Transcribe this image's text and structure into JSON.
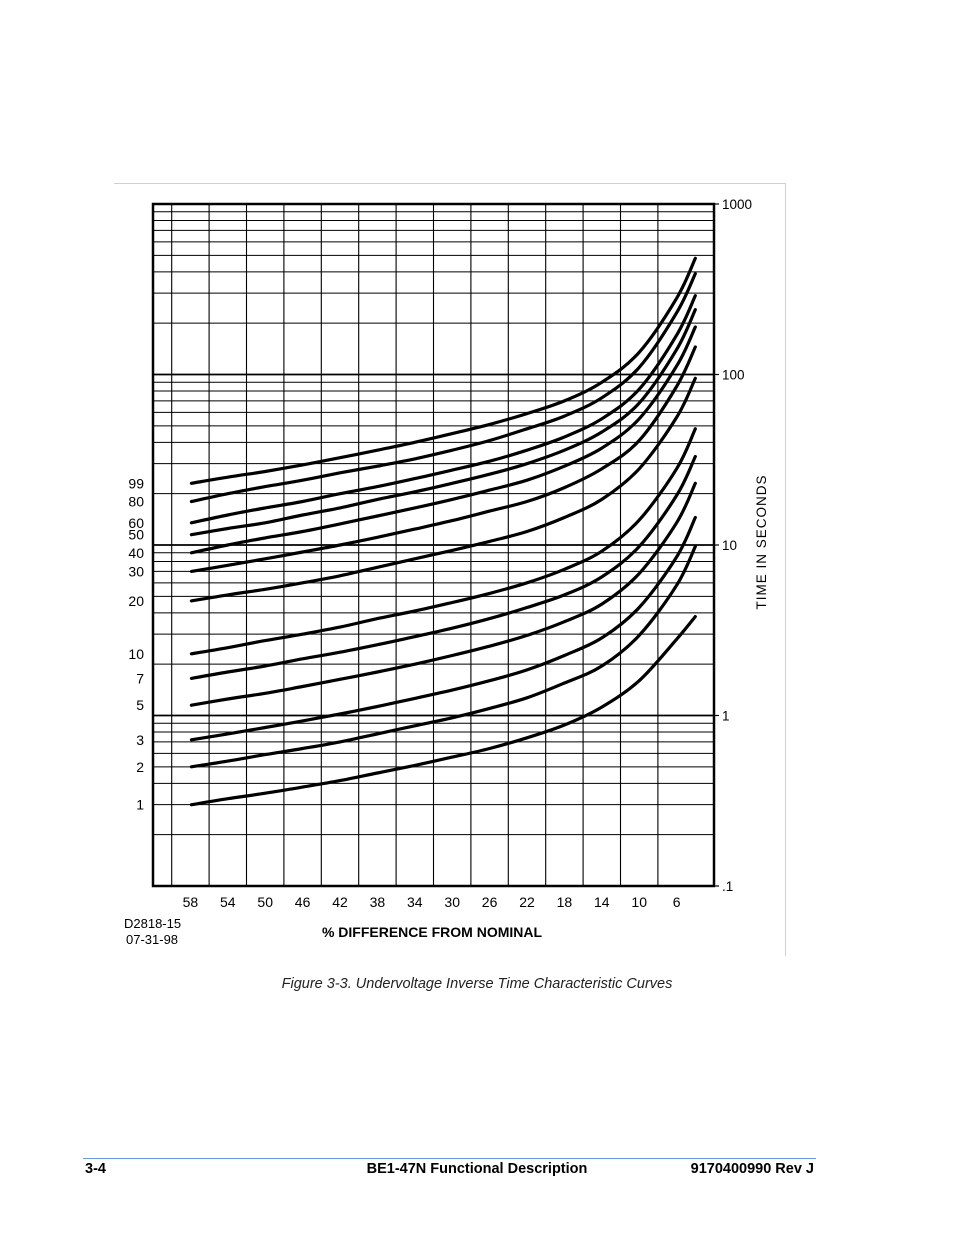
{
  "chart_data": {
    "type": "line",
    "title": "",
    "drawing_number": "D2818-15",
    "drawing_date": "07-31-98",
    "xlabel": "% DIFFERENCE FROM NOMINAL",
    "ylabel": "TIME IN SECONDS",
    "x_ticks": [
      "58",
      "54",
      "50",
      "46",
      "42",
      "38",
      "34",
      "30",
      "26",
      "22",
      "18",
      "14",
      "10",
      "6"
    ],
    "x_axis_direction": "decreasing left to right",
    "y_ticks": [
      ".1",
      "1",
      "10",
      "100",
      "1000"
    ],
    "y_scale": "log",
    "ylim": [
      0.1,
      1000
    ],
    "xlim": [
      62,
      2
    ],
    "grid": true,
    "curve_labels_side": "left",
    "x": [
      58,
      54,
      50,
      46,
      42,
      38,
      34,
      30,
      26,
      22,
      18,
      14,
      10,
      6,
      4
    ],
    "series": [
      {
        "name": "99",
        "values": [
          23,
          25,
          27,
          29.5,
          32.5,
          36,
          40,
          45,
          51,
          59,
          70,
          90,
          135,
          280,
          480
        ]
      },
      {
        "name": "80",
        "values": [
          18,
          20,
          22,
          24,
          26.5,
          29,
          32,
          36,
          41,
          48,
          57,
          73,
          110,
          230,
          390
        ]
      },
      {
        "name": "60",
        "values": [
          13.5,
          15,
          16.5,
          18,
          20,
          22,
          24.5,
          27.5,
          31,
          36,
          43,
          55,
          82,
          170,
          290
        ]
      },
      {
        "name": "50",
        "values": [
          11.5,
          12.5,
          13.5,
          15,
          16.5,
          18.5,
          20.5,
          23,
          26,
          30,
          36,
          46,
          68,
          140,
          240
        ]
      },
      {
        "name": "40",
        "values": [
          9,
          10,
          11,
          12,
          13.3,
          14.8,
          16.5,
          18.5,
          21,
          24,
          29,
          37,
          55,
          112,
          190
        ]
      },
      {
        "name": "30",
        "values": [
          7,
          7.6,
          8.3,
          9.1,
          10,
          11.1,
          12.4,
          13.9,
          15.8,
          18,
          21.7,
          28,
          41,
          85,
          145
        ]
      },
      {
        "name": "20",
        "values": [
          4.7,
          5.1,
          5.5,
          6,
          6.6,
          7.4,
          8.3,
          9.3,
          10.5,
          12,
          14.5,
          18.5,
          28,
          56,
          95
        ]
      },
      {
        "name": "10",
        "values": [
          2.3,
          2.5,
          2.75,
          3,
          3.3,
          3.7,
          4.1,
          4.6,
          5.2,
          6,
          7.2,
          9.2,
          14,
          28,
          48
        ]
      },
      {
        "name": "7",
        "values": [
          1.65,
          1.8,
          1.95,
          2.15,
          2.35,
          2.6,
          2.9,
          3.25,
          3.7,
          4.3,
          5.1,
          6.5,
          9.8,
          19.5,
          33
        ]
      },
      {
        "name": "5",
        "values": [
          1.15,
          1.25,
          1.35,
          1.48,
          1.63,
          1.8,
          2,
          2.25,
          2.55,
          2.95,
          3.55,
          4.5,
          6.8,
          13.5,
          23
        ]
      },
      {
        "name": "3",
        "values": [
          0.72,
          0.78,
          0.85,
          0.93,
          1.02,
          1.13,
          1.26,
          1.41,
          1.6,
          1.85,
          2.25,
          2.85,
          4.3,
          8.5,
          14.5
        ]
      },
      {
        "name": "2",
        "values": [
          0.5,
          0.54,
          0.59,
          0.64,
          0.7,
          0.78,
          0.87,
          0.97,
          1.1,
          1.27,
          1.55,
          1.95,
          2.95,
          5.8,
          9.8
        ]
      },
      {
        "name": "1",
        "values": [
          0.3,
          0.325,
          0.35,
          0.38,
          0.415,
          0.46,
          0.51,
          0.57,
          0.64,
          0.74,
          0.88,
          1.12,
          1.6,
          2.8,
          3.8
        ]
      }
    ]
  },
  "caption": "Figure 3-3. Undervoltage Inverse Time Characteristic Curves",
  "footer": {
    "left": "3-4",
    "center": "BE1-47N Functional Description",
    "right": "9170400990 Rev J"
  }
}
